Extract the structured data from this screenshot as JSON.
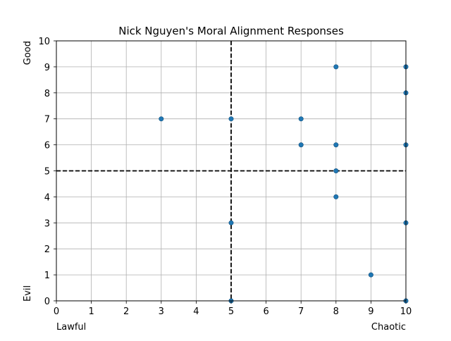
{
  "chart_data": {
    "type": "scatter",
    "title": "Nick Nguyen's Moral Alignment Responses",
    "xlabel_left": "Lawful",
    "xlabel_right": "Chaotic",
    "ylabel_top": "Good",
    "ylabel_bottom": "Evil",
    "xlim": [
      0,
      10
    ],
    "ylim": [
      0,
      10
    ],
    "xticks": [
      "0",
      "1",
      "2",
      "3",
      "4",
      "5",
      "6",
      "7",
      "8",
      "9",
      "10"
    ],
    "yticks": [
      "0",
      "1",
      "2",
      "3",
      "4",
      "5",
      "6",
      "7",
      "8",
      "9",
      "10"
    ],
    "grid": true,
    "reference_lines": {
      "x": 5,
      "y": 5,
      "style": "dashed",
      "color": "#000000"
    },
    "marker_color": "#1f77b4",
    "points": [
      {
        "x": 3,
        "y": 7
      },
      {
        "x": 5,
        "y": 7
      },
      {
        "x": 5,
        "y": 3
      },
      {
        "x": 5,
        "y": 0
      },
      {
        "x": 7,
        "y": 7
      },
      {
        "x": 7,
        "y": 6
      },
      {
        "x": 8,
        "y": 9
      },
      {
        "x": 8,
        "y": 6
      },
      {
        "x": 8,
        "y": 5
      },
      {
        "x": 8,
        "y": 4
      },
      {
        "x": 9,
        "y": 1
      },
      {
        "x": 10,
        "y": 9
      },
      {
        "x": 10,
        "y": 8
      },
      {
        "x": 10,
        "y": 6
      },
      {
        "x": 10,
        "y": 3
      },
      {
        "x": 10,
        "y": 0
      }
    ]
  }
}
